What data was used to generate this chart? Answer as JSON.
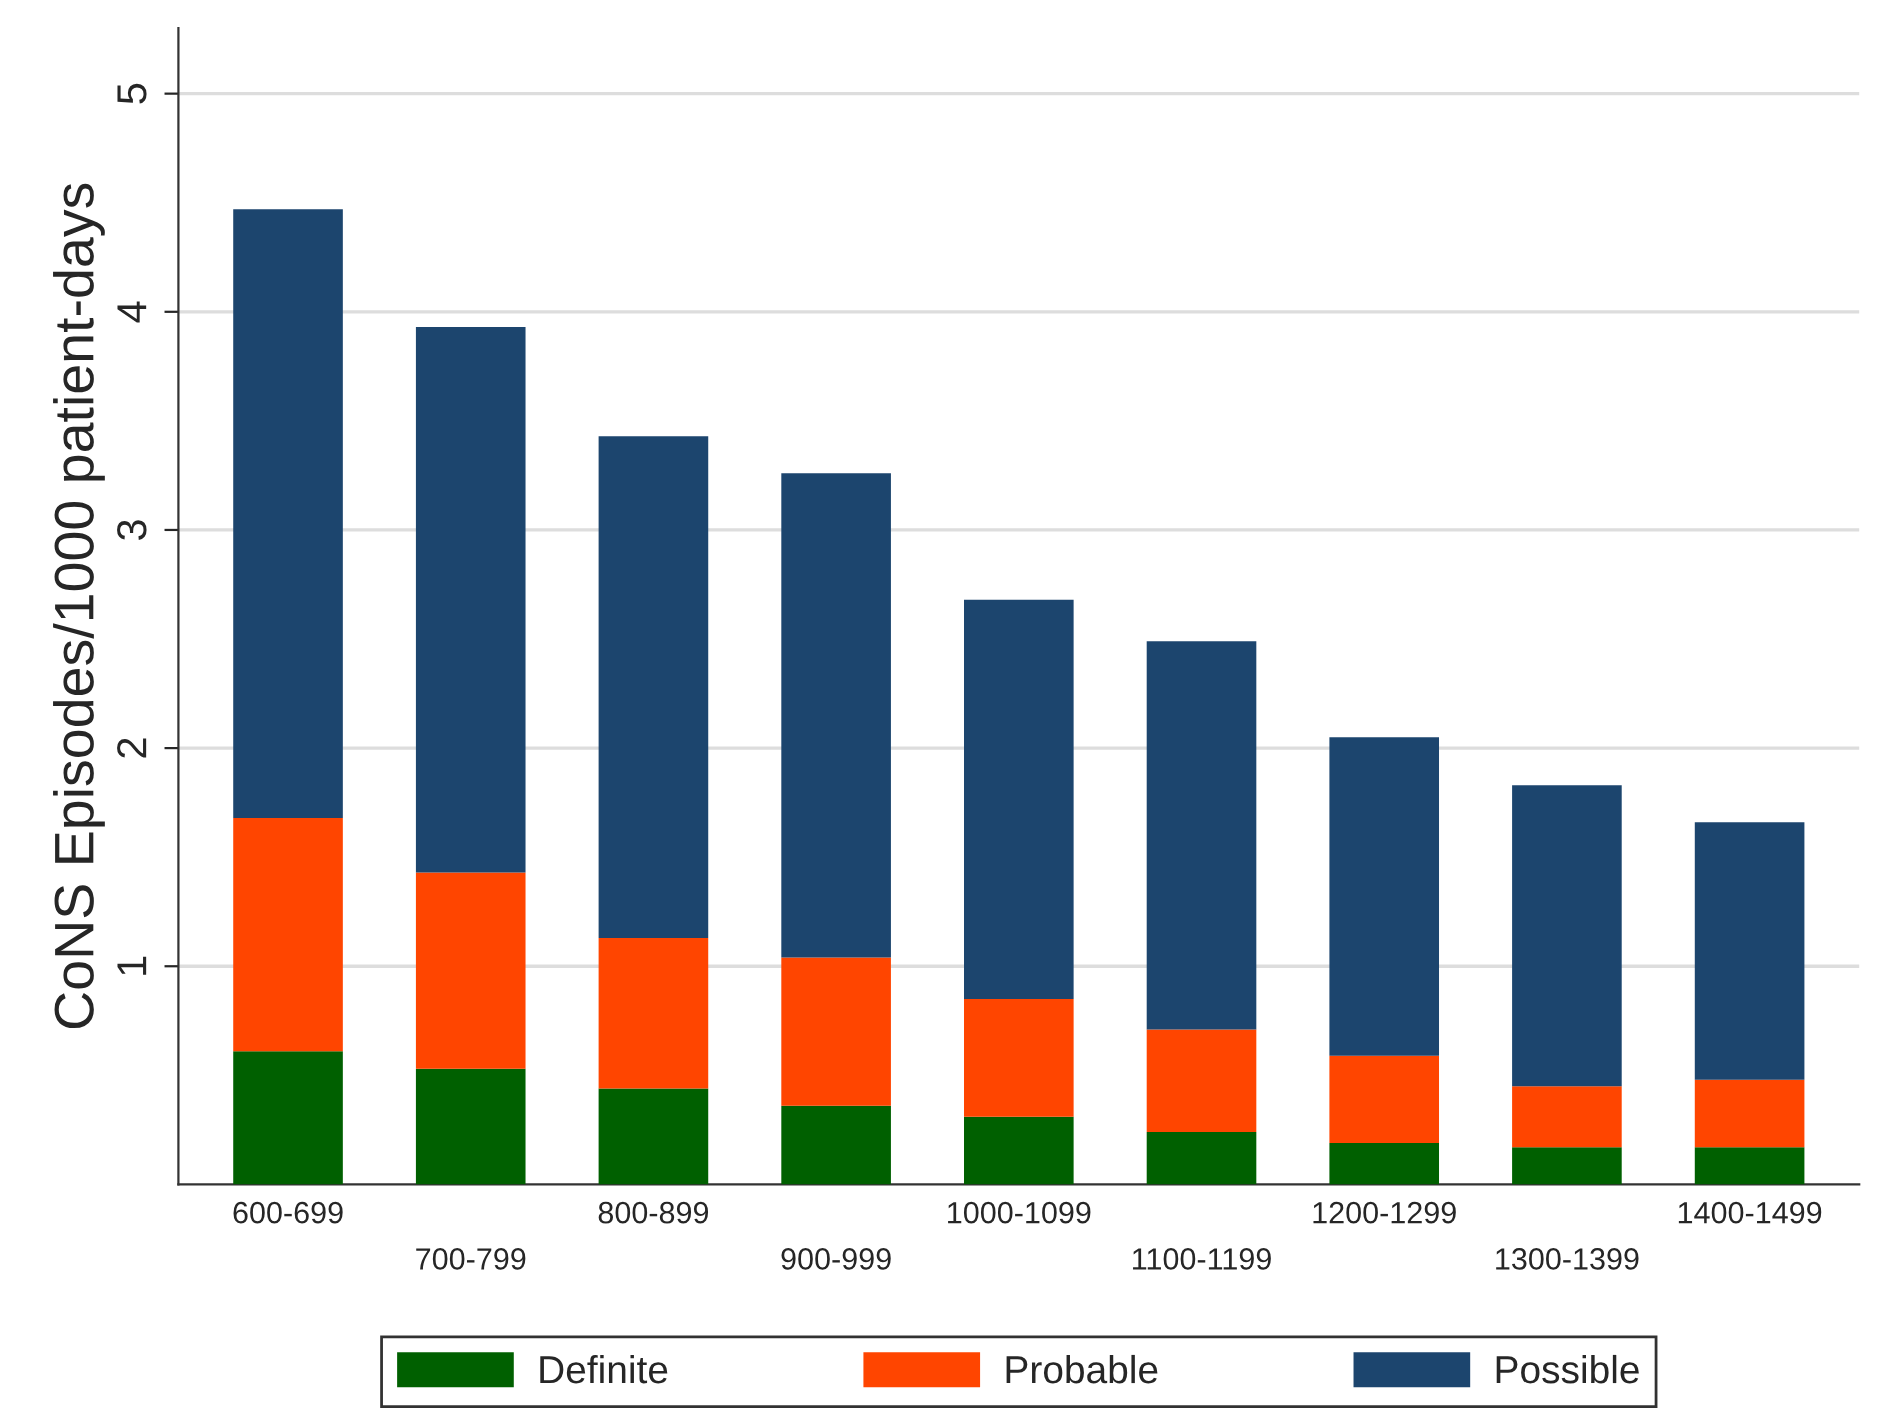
{
  "chart_data": {
    "type": "bar",
    "stacked": true,
    "ylabel": "CoNS Episodes/1000 patient-days",
    "categories": [
      "600-699",
      "700-799",
      "800-899",
      "900-999",
      "1000-1099",
      "1100-1199",
      "1200-1299",
      "1300-1399",
      "1400-1499"
    ],
    "series": [
      {
        "name": "Definite",
        "color": "#006000",
        "values": [
          0.61,
          0.53,
          0.44,
          0.36,
          0.31,
          0.24,
          0.19,
          0.17,
          0.17
        ]
      },
      {
        "name": "Probable",
        "color": "#ff4500",
        "values": [
          1.07,
          0.9,
          0.69,
          0.68,
          0.54,
          0.47,
          0.4,
          0.28,
          0.31
        ]
      },
      {
        "name": "Possible",
        "color": "#1c456e",
        "values": [
          2.79,
          2.5,
          2.3,
          2.22,
          1.83,
          1.78,
          1.46,
          1.38,
          1.18
        ]
      }
    ],
    "ylim": [
      0,
      5.3
    ],
    "yticks": [
      1,
      2,
      3,
      4,
      5
    ],
    "grid": "y",
    "legend": "bottom"
  }
}
